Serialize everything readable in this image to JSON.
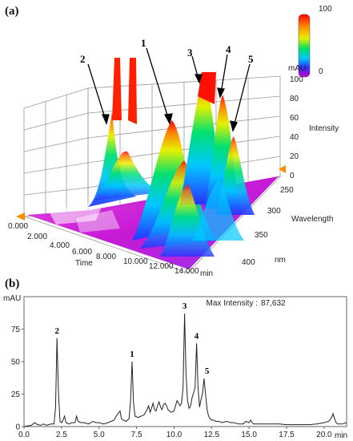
{
  "figure_a": {
    "panel_label": "(a)",
    "colorbar": {
      "max_label": "100",
      "min_label": "0"
    },
    "intensity_axis": {
      "unit": "mAU",
      "title": "Intensity",
      "ticks": [
        "100",
        "80",
        "60",
        "40",
        "20",
        "0"
      ]
    },
    "wavelength_axis": {
      "title": "Wavelength",
      "unit": "nm",
      "ticks": [
        "250",
        "300",
        "350",
        "400"
      ]
    },
    "time_axis": {
      "title": "Time",
      "unit": "min",
      "ticks": [
        "0.000",
        "2.000",
        "4.000",
        "6.000",
        "8.000",
        "10.000",
        "12.000",
        "14.000"
      ]
    },
    "peak_labels": [
      "1",
      "2",
      "3",
      "4",
      "5"
    ]
  },
  "figure_b": {
    "panel_label": "(b)",
    "ylabel": "mAU",
    "max_intensity_label": "Max Intensity :",
    "max_intensity_value": "87,632",
    "x_unit": "min"
  },
  "chart_data": [
    {
      "type": "surface3d",
      "title": "",
      "x": {
        "label": "Time",
        "unit": "min",
        "range": [
          0,
          14
        ]
      },
      "y": {
        "label": "Wavelength",
        "unit": "nm",
        "range": [
          250,
          400
        ]
      },
      "z": {
        "label": "Intensity",
        "unit": "mAU",
        "range": [
          0,
          100
        ]
      },
      "colorscale": [
        "#cc00cc",
        "#2020ff",
        "#00c0ff",
        "#00e060",
        "#e0f000",
        "#ff8000",
        "#ff0000"
      ],
      "peaks": [
        {
          "label": "2",
          "time": 2.2
        },
        {
          "label": "1",
          "time": 7.2
        },
        {
          "label": "3",
          "time": 10.7
        },
        {
          "label": "4",
          "time": 11.5
        },
        {
          "label": "5",
          "time": 12.2
        }
      ]
    },
    {
      "type": "line",
      "title": "",
      "xlabel": "min",
      "ylabel": "mAU",
      "xlim": [
        0,
        21.5
      ],
      "ylim": [
        0,
        100
      ],
      "xticks": [
        0.0,
        2.5,
        5.0,
        7.5,
        10.0,
        12.5,
        15.0,
        17.5,
        20.0
      ],
      "yticks": [
        0,
        25,
        50,
        75
      ],
      "grid": false,
      "series": [
        {
          "x": [
            0,
            0.5,
            0.7,
            0.9,
            1.1,
            1.3,
            1.5,
            1.8,
            2.0,
            2.1,
            2.2,
            2.3,
            2.4,
            2.5,
            2.6,
            2.7,
            2.8,
            3.0,
            3.2,
            3.4,
            3.5,
            3.6,
            3.8,
            4.0,
            4.3,
            4.6,
            4.8,
            5.0,
            5.3,
            5.6,
            5.8,
            6.0,
            6.2,
            6.4,
            6.5,
            6.6,
            6.8,
            7.0,
            7.1,
            7.2,
            7.3,
            7.4,
            7.6,
            7.8,
            8.0,
            8.2,
            8.3,
            8.4,
            8.5,
            8.6,
            8.7,
            8.8,
            8.9,
            9.0,
            9.1,
            9.2,
            9.3,
            9.4,
            9.5,
            9.6,
            9.8,
            10.0,
            10.2,
            10.4,
            10.5,
            10.6,
            10.7,
            10.8,
            10.9,
            11.0,
            11.1,
            11.2,
            11.3,
            11.4,
            11.5,
            11.6,
            11.7,
            11.8,
            11.9,
            12.0,
            12.1,
            12.2,
            12.3,
            12.4,
            12.5,
            12.6,
            12.8,
            13.0,
            13.2,
            13.5,
            13.8,
            14.0,
            14.3,
            14.6,
            14.8,
            15.0,
            15.1,
            15.2,
            15.3,
            15.5,
            15.8,
            16.0,
            16.5,
            17.0,
            17.5,
            18.0,
            18.5,
            19.0,
            19.5,
            20.0,
            20.3,
            20.5,
            20.6,
            20.7,
            20.8,
            20.9,
            21.0,
            21.2,
            21.5
          ],
          "y": [
            0,
            1,
            3,
            1.5,
            1,
            2,
            1,
            2,
            2,
            15,
            68,
            25,
            4,
            3,
            5,
            8,
            3,
            2,
            3,
            3,
            8,
            4,
            3,
            3,
            2,
            4,
            3,
            3,
            2,
            3,
            4,
            5,
            9,
            12,
            6,
            5,
            4,
            6,
            20,
            50,
            18,
            8,
            7,
            8,
            9,
            13,
            16,
            11,
            14,
            18,
            13,
            12,
            16,
            19,
            15,
            13,
            17,
            18,
            16,
            13,
            11,
            12,
            20,
            16,
            18,
            30,
            87,
            40,
            20,
            14,
            16,
            22,
            26,
            30,
            64,
            30,
            15,
            21,
            26,
            37,
            25,
            13,
            8,
            6,
            5,
            5,
            4,
            4,
            3,
            4,
            3,
            3,
            2,
            2,
            4,
            3,
            5,
            3,
            2,
            2,
            2,
            2,
            2,
            2,
            1.5,
            1.5,
            1.5,
            1.5,
            2,
            3,
            4,
            7,
            10,
            6,
            3,
            2,
            2,
            2,
            3
          ]
        }
      ],
      "peak_labels": [
        {
          "label": "2",
          "x": 2.2,
          "y": 68
        },
        {
          "label": "1",
          "x": 7.2,
          "y": 50
        },
        {
          "label": "3",
          "x": 10.7,
          "y": 87
        },
        {
          "label": "4",
          "x": 11.5,
          "y": 64
        },
        {
          "label": "5",
          "x": 12.2,
          "y": 37
        }
      ]
    }
  ]
}
